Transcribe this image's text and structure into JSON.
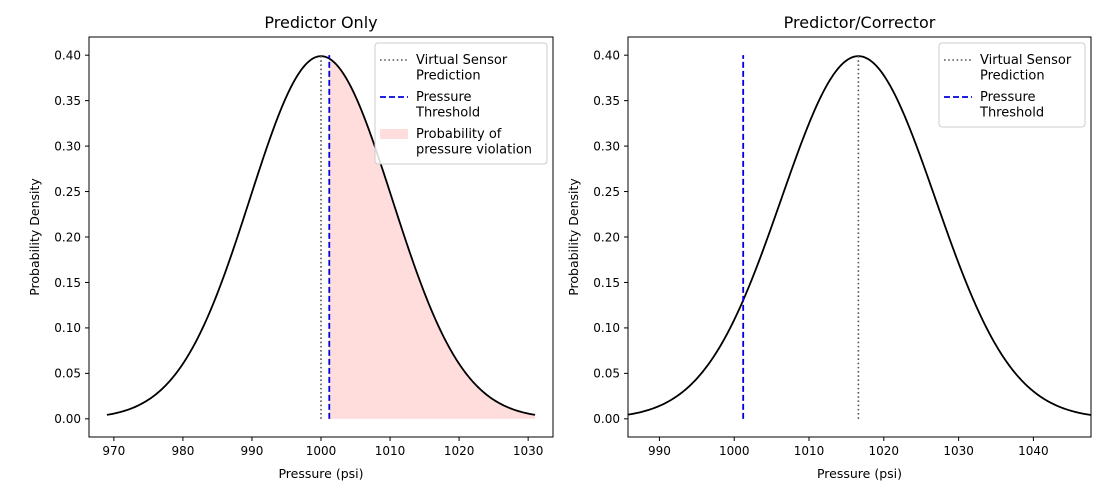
{
  "chart_data": [
    {
      "type": "line",
      "title": "Predictor Only",
      "xlabel": "Pressure (psi)",
      "ylabel": "Probability Density",
      "xlim": [
        966.4,
        1033.6
      ],
      "ylim": [
        -0.02,
        0.42
      ],
      "xticks": [
        970,
        980,
        990,
        1000,
        1010,
        1020,
        1030
      ],
      "yticks": [
        0.0,
        0.05,
        0.1,
        0.15,
        0.2,
        0.25,
        0.3,
        0.35,
        0.4
      ],
      "ytick_labels": [
        "0.00",
        "0.05",
        "0.10",
        "0.15",
        "0.20",
        "0.25",
        "0.30",
        "0.35",
        "0.40"
      ],
      "curve": {
        "type": "normal-pdf",
        "mean": 1000,
        "std": 1,
        "x_range": [
          969,
          1031
        ],
        "x_scale_std": 10.3,
        "color": "#000000"
      },
      "fill": {
        "from_x": 1001.2,
        "to_x": 1031,
        "color": "#ffdddd",
        "name": "Probability of\npressure violation"
      },
      "vlines": [
        {
          "name": "Virtual Sensor\nPrediction",
          "x": 1000,
          "y_range": [
            0,
            0.4
          ],
          "style": "dotted",
          "color": "#555555"
        },
        {
          "name": "Pressure\nThreshold",
          "x": 1001.2,
          "y_range": [
            0,
            0.4
          ],
          "style": "dashed",
          "color": "#0000dd"
        }
      ],
      "legend": {
        "position": "top-right",
        "entries": [
          {
            "label": "Virtual Sensor\nPrediction",
            "style": "dotted",
            "color": "#555555"
          },
          {
            "label": "Pressure\nThreshold",
            "style": "dashed",
            "color": "#0000dd"
          },
          {
            "label": "Probability of\npressure violation",
            "style": "patch",
            "color": "#ffdddd"
          }
        ]
      }
    },
    {
      "type": "line",
      "title": "Predictor/Corrector",
      "xlabel": "Pressure (psi)",
      "ylabel": "Probability Density",
      "xlim": [
        985.8,
        1047.7
      ],
      "ylim": [
        -0.02,
        0.42
      ],
      "xticks": [
        990,
        1000,
        1010,
        1020,
        1030,
        1040
      ],
      "yticks": [
        0.0,
        0.05,
        0.1,
        0.15,
        0.2,
        0.25,
        0.3,
        0.35,
        0.4
      ],
      "ytick_labels": [
        "0.00",
        "0.05",
        "0.10",
        "0.15",
        "0.20",
        "0.25",
        "0.30",
        "0.35",
        "0.40"
      ],
      "curve": {
        "type": "normal-pdf",
        "mean": 1016.6,
        "std": 1,
        "x_range": [
          985.8,
          1047.7
        ],
        "x_scale_std": 10.3,
        "color": "#000000"
      },
      "vlines": [
        {
          "name": "Virtual Sensor\nPrediction",
          "x": 1016.6,
          "y_range": [
            0,
            0.4
          ],
          "style": "dotted",
          "color": "#555555"
        },
        {
          "name": "Pressure\nThreshold",
          "x": 1001.2,
          "y_range": [
            0,
            0.4
          ],
          "style": "dashed",
          "color": "#0000dd"
        }
      ],
      "legend": {
        "position": "top-right",
        "entries": [
          {
            "label": "Virtual Sensor\nPrediction",
            "style": "dotted",
            "color": "#555555"
          },
          {
            "label": "Pressure\nThreshold",
            "style": "dashed",
            "color": "#0000dd"
          }
        ]
      }
    }
  ]
}
